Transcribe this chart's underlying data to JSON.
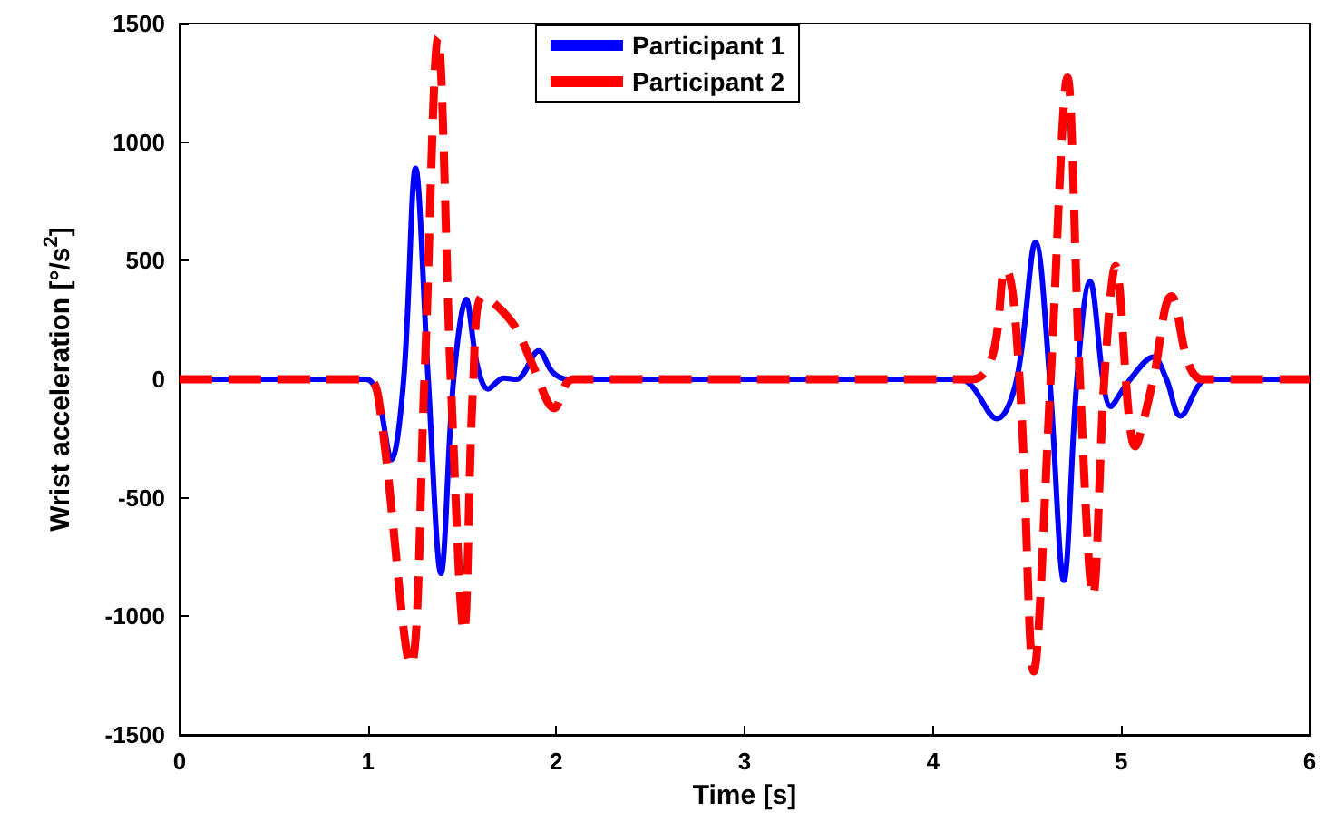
{
  "chart_data": {
    "type": "line",
    "xlabel": "Time [s]",
    "ylabel": "Wrist acceleration [°/s$^{2}$]",
    "xlim": [
      0,
      6
    ],
    "xticks": [
      0,
      1,
      2,
      3,
      4,
      5,
      6
    ],
    "ylim": [
      -1500,
      1500
    ],
    "yticks": [
      -1500,
      -1000,
      -500,
      0,
      500,
      1000,
      1500
    ],
    "legend": "top",
    "marker": "none",
    "series": [
      {
        "name": "Participant 1",
        "color": "#0000ff",
        "line_style": "solid",
        "x": [
          0,
          0.99,
          1.05,
          1.125,
          1.19,
          1.253,
          1.32,
          1.388,
          1.455,
          1.522,
          1.58,
          1.638,
          1.72,
          1.79,
          1.907,
          1.98,
          2.06,
          4.14,
          4.34,
          4.445,
          4.545,
          4.62,
          4.695,
          4.765,
          4.834,
          4.945,
          5.04,
          5.17,
          5.24,
          5.315,
          5.46,
          6
        ],
        "values": [
          0,
          0,
          -60,
          -339,
          0,
          890,
          0,
          -819,
          0,
          337,
          60,
          -41,
          5,
          0,
          120,
          30,
          0,
          0,
          -166,
          0,
          579,
          0,
          -849,
          0,
          413,
          -115,
          -8,
          94,
          0,
          -155,
          0,
          0
        ]
      },
      {
        "name": "Participant 2",
        "color": "#ff0000",
        "line_style": "dashed",
        "x": [
          0,
          1.0,
          1.06,
          1.228,
          1.3,
          1.372,
          1.44,
          1.51,
          1.56,
          1.612,
          1.77,
          1.88,
          1.99,
          2.09,
          4.21,
          4.385,
          4.46,
          4.535,
          4.625,
          4.714,
          4.78,
          4.85,
          4.91,
          4.97,
          5.074,
          5.17,
          5.266,
          5.43,
          6
        ],
        "values": [
          0,
          0,
          -100,
          -1207,
          0,
          1441,
          0,
          -1066,
          0,
          350,
          235,
          50,
          -122,
          0,
          0,
          464,
          0,
          -1232,
          0,
          1272,
          0,
          -913,
          0,
          477,
          -283,
          0,
          350,
          0,
          0
        ]
      }
    ]
  }
}
